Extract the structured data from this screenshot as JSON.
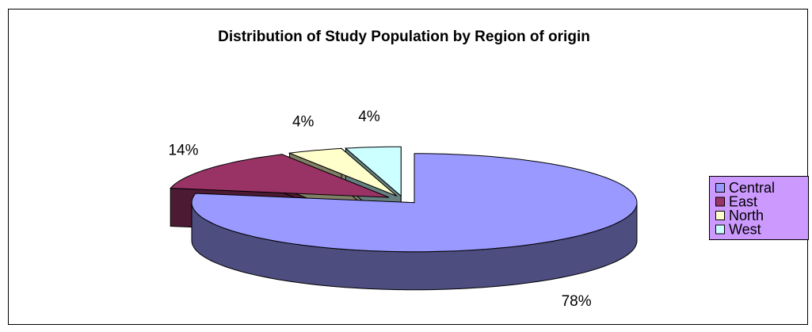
{
  "chart_data": {
    "type": "pie3d",
    "title": "Distribution of Study Population by Region of origin",
    "categories": [
      "Central",
      "East",
      "North",
      "West"
    ],
    "values": [
      78,
      14,
      4,
      4
    ],
    "value_labels": [
      "78%",
      "14%",
      "4%",
      "4%"
    ],
    "colors": [
      "#9999ff",
      "#993366",
      "#ffffcc",
      "#ccffff"
    ],
    "legend": "right"
  }
}
